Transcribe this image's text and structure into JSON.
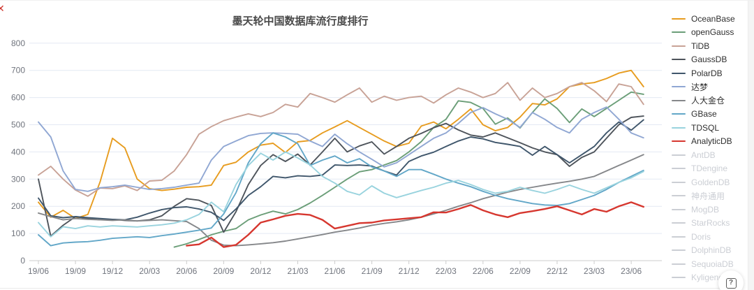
{
  "title": "墨天轮中国数据库流行度排行",
  "close_icon": "✕",
  "help_icon": "?",
  "colors": {
    "grid": "#e3e9f3",
    "axis_line": "#cccccc",
    "axis_label": "#70747d",
    "title_text": "#4a4a4a",
    "disabled_legend": "#cbced4"
  },
  "chart_data": {
    "type": "line",
    "title": "墨天轮中国数据库流行度排行",
    "xlabel": "",
    "ylabel": "",
    "ylim": [
      0,
      800
    ],
    "y_ticks": [
      0,
      100,
      200,
      300,
      400,
      500,
      600,
      700,
      800
    ],
    "x_tick_labels": [
      "19/06",
      "19/09",
      "19/12",
      "20/03",
      "20/06",
      "20/09",
      "20/12",
      "21/03",
      "21/06",
      "21/09",
      "21/12",
      "22/03",
      "22/06",
      "22/09",
      "22/12",
      "23/03",
      "23/06"
    ],
    "x_step_months": 1,
    "grid": true,
    "legend_position": "right",
    "series": [
      {
        "name": "OceanBase",
        "color": "#e79c1f",
        "values": [
          215,
          160,
          185,
          155,
          170,
          290,
          450,
          415,
          300,
          265,
          258,
          263,
          270,
          272,
          278,
          350,
          362,
          400,
          425,
          432,
          398,
          437,
          442,
          470,
          492,
          515,
          490,
          465,
          440,
          420,
          432,
          495,
          510,
          485,
          520,
          558,
          500,
          478,
          490,
          528,
          578,
          573,
          595,
          640,
          650,
          655,
          670,
          690,
          700,
          640
        ]
      },
      {
        "name": "openGauss",
        "color": "#6b9e78",
        "values": [
          null,
          null,
          null,
          null,
          null,
          null,
          null,
          null,
          null,
          null,
          null,
          50,
          62,
          78,
          95,
          108,
          118,
          150,
          168,
          182,
          172,
          188,
          212,
          240,
          270,
          300,
          327,
          335,
          352,
          368,
          400,
          438,
          490,
          520,
          588,
          582,
          560,
          502,
          525,
          488,
          545,
          595,
          560,
          508,
          558,
          530,
          560,
          590,
          620,
          612
        ]
      },
      {
        "name": "TiDB",
        "color": "#c8a296",
        "values": [
          315,
          347,
          300,
          260,
          237,
          267,
          265,
          275,
          258,
          293,
          296,
          330,
          390,
          465,
          493,
          515,
          528,
          540,
          530,
          545,
          575,
          565,
          615,
          600,
          583,
          610,
          635,
          583,
          605,
          590,
          600,
          605,
          580,
          610,
          635,
          620,
          600,
          615,
          655,
          590,
          635,
          600,
          615,
          640,
          655,
          625,
          585,
          650,
          640,
          575
        ]
      },
      {
        "name": "GaussDB",
        "color": "#4e545b",
        "values": [
          300,
          90,
          130,
          162,
          155,
          150,
          152,
          148,
          146,
          150,
          165,
          200,
          228,
          222,
          203,
          105,
          180,
          280,
          350,
          390,
          365,
          392,
          352,
          400,
          450,
          400,
          422,
          437,
          392,
          420,
          450,
          468,
          489,
          505,
          481,
          462,
          455,
          470,
          452,
          434,
          415,
          400,
          390,
          347,
          380,
          400,
          450,
          500,
          527,
          532
        ]
      },
      {
        "name": "PolarDB",
        "color": "#3f566b",
        "values": [
          230,
          165,
          158,
          162,
          158,
          155,
          152,
          150,
          160,
          175,
          188,
          195,
          198,
          190,
          178,
          148,
          190,
          240,
          272,
          310,
          305,
          312,
          310,
          315,
          352,
          350,
          352,
          348,
          330,
          315,
          365,
          385,
          399,
          420,
          440,
          455,
          448,
          435,
          428,
          420,
          388,
          420,
          390,
          360,
          390,
          420,
          470,
          510,
          480,
          518
        ]
      },
      {
        "name": "达梦",
        "color": "#90a7d3",
        "values": [
          510,
          455,
          330,
          262,
          255,
          268,
          272,
          278,
          270,
          262,
          265,
          270,
          278,
          285,
          370,
          420,
          440,
          460,
          468,
          470,
          468,
          465,
          440,
          420,
          465,
          430,
          400,
          373,
          345,
          360,
          390,
          420,
          450,
          470,
          505,
          545,
          563,
          540,
          520,
          490,
          545,
          520,
          490,
          470,
          520,
          545,
          565,
          520,
          470,
          452
        ]
      },
      {
        "name": "人大金仓",
        "color": "#85878a",
        "values": [
          175,
          162,
          150,
          155,
          152,
          150,
          148,
          150,
          146,
          148,
          150,
          147,
          144,
          118,
          75,
          57,
          55,
          58,
          62,
          66,
          72,
          80,
          88,
          96,
          105,
          112,
          120,
          130,
          137,
          143,
          150,
          160,
          172,
          185,
          200,
          213,
          228,
          240,
          252,
          262,
          270,
          278,
          285,
          292,
          300,
          310,
          330,
          350,
          370,
          390
        ]
      },
      {
        "name": "GBase",
        "color": "#62a7c8",
        "values": [
          95,
          55,
          65,
          68,
          70,
          75,
          82,
          85,
          88,
          85,
          92,
          98,
          105,
          112,
          120,
          172,
          250,
          360,
          430,
          470,
          455,
          430,
          350,
          370,
          385,
          360,
          375,
          345,
          330,
          310,
          335,
          335,
          318,
          300,
          285,
          272,
          255,
          240,
          228,
          219,
          210,
          205,
          203,
          210,
          225,
          240,
          262,
          288,
          310,
          332
        ]
      },
      {
        "name": "TDSQL",
        "color": "#99d3de",
        "values": [
          140,
          88,
          125,
          118,
          128,
          124,
          128,
          126,
          124,
          128,
          132,
          138,
          150,
          170,
          215,
          180,
          280,
          350,
          395,
          370,
          400,
          378,
          352,
          310,
          285,
          255,
          242,
          275,
          248,
          232,
          245,
          258,
          270,
          285,
          295,
          280,
          262,
          248,
          255,
          270,
          258,
          248,
          262,
          278,
          262,
          248,
          268,
          288,
          305,
          328
        ]
      },
      {
        "name": "AnalyticDB",
        "color": "#d6372f",
        "lw": 2.4,
        "values": [
          null,
          null,
          null,
          null,
          null,
          null,
          null,
          null,
          null,
          null,
          null,
          null,
          55,
          60,
          85,
          50,
          58,
          95,
          140,
          152,
          165,
          172,
          168,
          150,
          118,
          128,
          138,
          140,
          148,
          152,
          156,
          160,
          178,
          177,
          190,
          205,
          185,
          170,
          160,
          175,
          182,
          190,
          200,
          185,
          170,
          190,
          180,
          200,
          215,
          198
        ]
      }
    ],
    "disabled_series": [
      "AntDB",
      "TDengine",
      "GoldenDB",
      "神舟通用",
      "MogDB",
      "StarRocks",
      "Doris",
      "DolphinDB",
      "SequoiaDB",
      "Kyligence"
    ]
  }
}
